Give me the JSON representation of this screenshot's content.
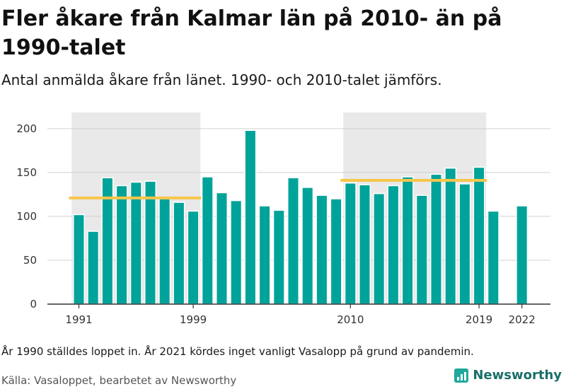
{
  "header": {
    "title": "Fler åkare från Kalmar län på 2010- än på 1990-talet",
    "subtitle": "Antal anmälda åkare från länet. 1990- och 2010-talet jämförs."
  },
  "footer": {
    "note": "År 1990 ställdes loppet in. År 2021 kördes inget vanligt Vasalopp på grund av pandemin.",
    "source": "Källa: Vasaloppet, bearbetet av Newsworthy",
    "brand": "Newsworthy"
  },
  "colors": {
    "bar": "#00a399",
    "average_line": "#f7c64b",
    "decade_shade": "#e9e9e9",
    "brand": "#1fa89b"
  },
  "chart_data": {
    "type": "bar",
    "title": "Fler åkare från Kalmar län på 2010- än på 1990-talet",
    "xlabel": "",
    "ylabel": "",
    "x": [
      1991,
      1992,
      1993,
      1994,
      1995,
      1996,
      1997,
      1998,
      1999,
      2000,
      2001,
      2002,
      2003,
      2004,
      2005,
      2006,
      2007,
      2008,
      2009,
      2010,
      2011,
      2012,
      2013,
      2014,
      2015,
      2016,
      2017,
      2018,
      2019,
      2020,
      2022
    ],
    "values": [
      102,
      83,
      144,
      135,
      139,
      140,
      120,
      116,
      106,
      145,
      127,
      118,
      198,
      112,
      107,
      144,
      133,
      124,
      120,
      138,
      136,
      126,
      135,
      145,
      124,
      148,
      155,
      137,
      156,
      106,
      112
    ],
    "ylim": [
      0,
      220
    ],
    "yticks": [
      0,
      50,
      100,
      150,
      200
    ],
    "xticks": [
      1991,
      1999,
      2010,
      2019,
      2022
    ],
    "grid": true,
    "shaded_periods": [
      {
        "from": 1991,
        "to": 1999
      },
      {
        "from": 2010,
        "to": 2019
      }
    ],
    "average_lines": [
      {
        "from": 1991,
        "to": 1999,
        "value": 121
      },
      {
        "from": 2010,
        "to": 2019,
        "value": 141
      }
    ]
  }
}
